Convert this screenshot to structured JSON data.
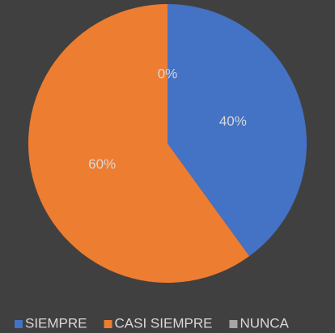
{
  "chart_data": {
    "type": "pie",
    "categories": [
      "SIEMPRE",
      "CASI SIEMPRE",
      "NUNCA"
    ],
    "values": [
      40,
      60,
      0
    ],
    "value_labels": [
      "40%",
      "60%",
      "0%"
    ],
    "colors": [
      "#4472c4",
      "#ed7d31",
      "#a5a5a5"
    ],
    "legend": "bottom"
  }
}
